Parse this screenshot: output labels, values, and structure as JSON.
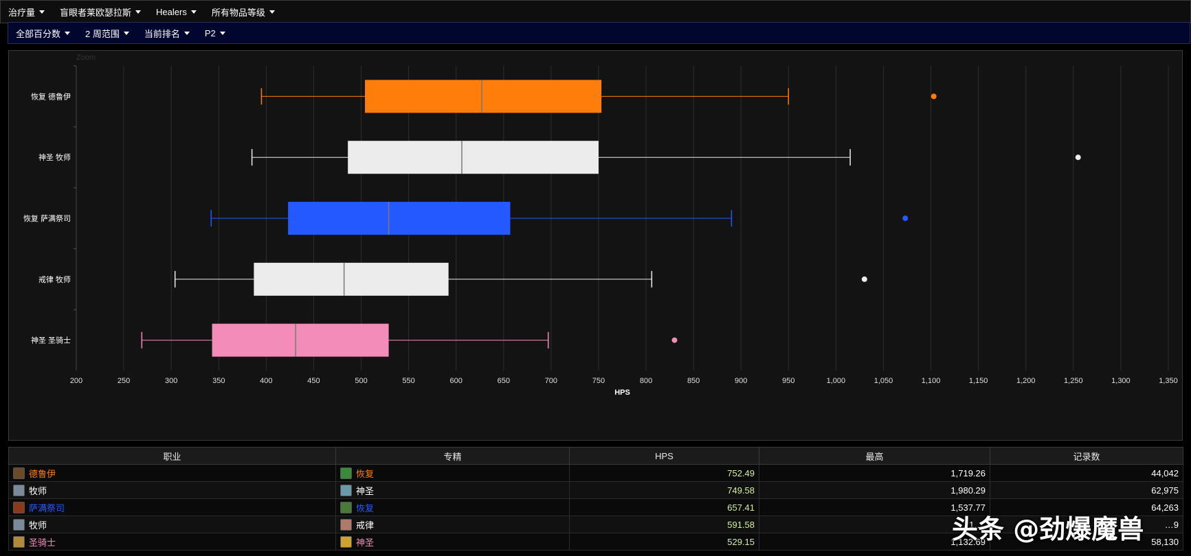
{
  "nav_top": {
    "items": [
      {
        "label": "治疗量"
      },
      {
        "label": "盲眼者莱欧瑟拉斯"
      },
      {
        "label": "Healers"
      },
      {
        "label": "所有物品等级"
      }
    ]
  },
  "nav_sub": {
    "items": [
      {
        "label": "全部百分数"
      },
      {
        "label": "2 周范围"
      },
      {
        "label": "当前排名"
      },
      {
        "label": "P2"
      }
    ]
  },
  "zoom_label": "Zoom",
  "chart_data": {
    "type": "boxplot",
    "orientation": "horizontal",
    "xlabel": "HPS",
    "xlim": [
      200,
      1350
    ],
    "xticks": [
      200,
      250,
      300,
      350,
      400,
      450,
      500,
      550,
      600,
      650,
      700,
      750,
      800,
      850,
      900,
      950,
      1000,
      1050,
      1100,
      1150,
      1200,
      1250,
      1300,
      1350
    ],
    "xtick_labels": [
      "200",
      "250",
      "300",
      "350",
      "400",
      "450",
      "500",
      "550",
      "600",
      "650",
      "700",
      "750",
      "800",
      "850",
      "900",
      "950",
      "1,000",
      "1,050",
      "1,100",
      "1,150",
      "1,200",
      "1,250",
      "1,300",
      "1,350"
    ],
    "grid": true,
    "series": [
      {
        "name": "恢复 德鲁伊",
        "color": "#ff7d0a",
        "min": 395,
        "q1": 504,
        "median": 627,
        "q3": 753,
        "max": 950,
        "outlier": 1103
      },
      {
        "name": "神圣 牧师",
        "color": "#ececec",
        "min": 385,
        "q1": 486,
        "median": 606,
        "q3": 750,
        "max": 1015,
        "outlier": 1255
      },
      {
        "name": "恢复 萨满祭司",
        "color": "#2459ff",
        "min": 342,
        "q1": 423,
        "median": 529,
        "q3": 657,
        "max": 890,
        "outlier": 1073
      },
      {
        "name": "戒律 牧师",
        "color": "#ececec",
        "min": 304,
        "q1": 387,
        "median": 482,
        "q3": 592,
        "max": 806,
        "outlier": 1030
      },
      {
        "name": "神圣 圣骑士",
        "color": "#f48cba",
        "min": 269,
        "q1": 343,
        "median": 431,
        "q3": 529,
        "max": 697,
        "outlier": 830
      }
    ]
  },
  "table": {
    "headers": [
      "职业",
      "专精",
      "HPS",
      "最高",
      "记录数"
    ],
    "rows": [
      {
        "class": "德鲁伊",
        "class_color": "#ff7d0a",
        "spec": "恢复",
        "spec_color": "#ff7d0a",
        "hps": "752.49",
        "max": "1,719.26",
        "count": "44,042",
        "class_icon": "druid-icon",
        "spec_icon": "restoration-druid-icon"
      },
      {
        "class": "牧师",
        "class_color": "#ffffff",
        "spec": "神圣",
        "spec_color": "#ffffff",
        "hps": "749.58",
        "max": "1,980.29",
        "count": "62,975",
        "class_icon": "priest-icon",
        "spec_icon": "holy-priest-icon"
      },
      {
        "class": "萨满祭司",
        "class_color": "#2459ff",
        "spec": "恢复",
        "spec_color": "#2459ff",
        "hps": "657.41",
        "max": "1,537.77",
        "count": "64,263",
        "class_icon": "shaman-icon",
        "spec_icon": "restoration-shaman-icon"
      },
      {
        "class": "牧师",
        "class_color": "#ffffff",
        "spec": "戒律",
        "spec_color": "#ffffff",
        "hps": "591.58",
        "max": "1,…",
        "count": "…9",
        "class_icon": "priest-icon",
        "spec_icon": "discipline-priest-icon"
      },
      {
        "class": "圣骑士",
        "class_color": "#f48cba",
        "spec": "神圣",
        "spec_color": "#f48cba",
        "hps": "529.15",
        "max": "1,132.69",
        "count": "58,130",
        "class_icon": "paladin-icon",
        "spec_icon": "holy-paladin-icon"
      }
    ]
  },
  "watermark": "头条 @劲爆魔兽"
}
